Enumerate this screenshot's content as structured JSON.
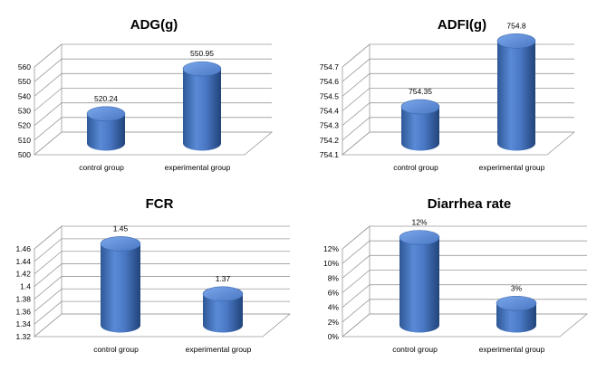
{
  "chart_data": [
    {
      "type": "bar",
      "title": "ADG(g)",
      "categories": [
        "control group",
        "experimental group"
      ],
      "values": [
        520.24,
        550.95
      ],
      "value_labels": [
        "520.24",
        "550.95"
      ],
      "ylim": [
        500,
        560
      ],
      "yticks": [
        500,
        510,
        520,
        530,
        540,
        550,
        560
      ],
      "ytick_labels": [
        "500",
        "510",
        "520",
        "530",
        "540",
        "550",
        "560"
      ],
      "grid": true,
      "bar_color": "#4a78c4"
    },
    {
      "type": "bar",
      "title": "ADFI(g)",
      "categories": [
        "control group",
        "experimental group"
      ],
      "values": [
        754.35,
        754.8
      ],
      "value_labels": [
        "754.35",
        "754.8"
      ],
      "ylim": [
        754.1,
        754.7
      ],
      "yticks": [
        754.1,
        754.2,
        754.3,
        754.4,
        754.5,
        754.6,
        754.7
      ],
      "ytick_labels": [
        "754.1",
        "754.2",
        "754.3",
        "754.4",
        "754.5",
        "754.6",
        "754.7"
      ],
      "grid": true,
      "bar_color": "#4a78c4"
    },
    {
      "type": "bar",
      "title": "FCR",
      "categories": [
        "control group",
        "experimental group"
      ],
      "values": [
        1.45,
        1.37
      ],
      "value_labels": [
        "1.45",
        "1.37"
      ],
      "ylim": [
        1.32,
        1.46
      ],
      "yticks": [
        1.32,
        1.34,
        1.36,
        1.38,
        1.4,
        1.42,
        1.44,
        1.46
      ],
      "ytick_labels": [
        "1.32",
        "1.34",
        "1.36",
        "1.38",
        "1.4",
        "1.42",
        "1.44",
        "1.46"
      ],
      "grid": true,
      "bar_color": "#4a78c4"
    },
    {
      "type": "bar",
      "title": "Diarrhea rate",
      "categories": [
        "control group",
        "experimental group"
      ],
      "values": [
        0.12,
        0.03
      ],
      "value_labels": [
        "12%",
        "3%"
      ],
      "ylim": [
        0,
        0.12
      ],
      "yticks": [
        0,
        0.02,
        0.04,
        0.06,
        0.08,
        0.1,
        0.12
      ],
      "ytick_labels": [
        "0%",
        "2%",
        "4%",
        "6%",
        "8%",
        "10%",
        "12%"
      ],
      "grid": true,
      "bar_color": "#4a78c4"
    }
  ]
}
